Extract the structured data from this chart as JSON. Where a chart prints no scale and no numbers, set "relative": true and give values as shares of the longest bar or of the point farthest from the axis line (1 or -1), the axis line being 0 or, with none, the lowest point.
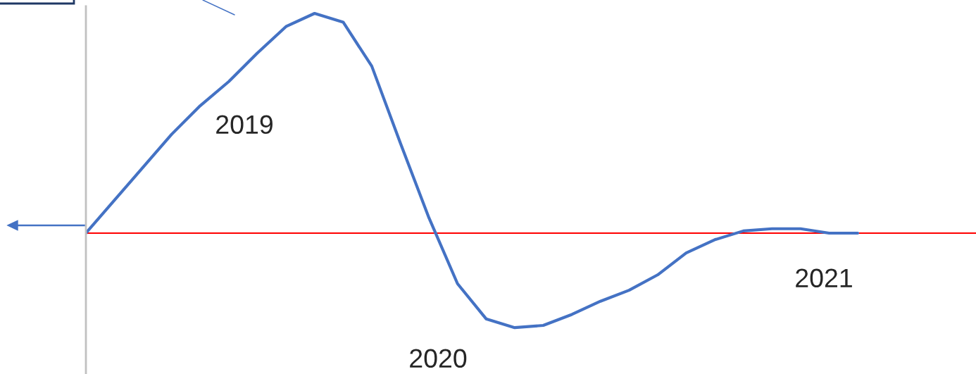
{
  "chart_data": {
    "type": "line",
    "relative": true,
    "categories": [
      null,
      null,
      null,
      null,
      null,
      null,
      null,
      null,
      null,
      null,
      null,
      null,
      null,
      null,
      null,
      null,
      null,
      null,
      null,
      null,
      null,
      null,
      null,
      null,
      null,
      null,
      null,
      null
    ],
    "series": [
      {
        "color": "#4472c4",
        "values": [
          0,
          0.15,
          0.3,
          0.45,
          0.58,
          0.69,
          0.82,
          0.94,
          1.0,
          0.96,
          0.76,
          0.41,
          0.07,
          -0.23,
          -0.39,
          -0.43,
          -0.42,
          -0.37,
          -0.31,
          -0.26,
          -0.19,
          -0.09,
          -0.03,
          0.01,
          0.02,
          0.02,
          0.0,
          0.0
        ]
      }
    ],
    "ref_lines": [
      {
        "axis": "y",
        "value": 0,
        "color": "#ff0000"
      }
    ],
    "annotations": [
      "2019",
      "2020",
      "2021"
    ],
    "legend": false,
    "marker": "none",
    "line_style": "solid"
  }
}
